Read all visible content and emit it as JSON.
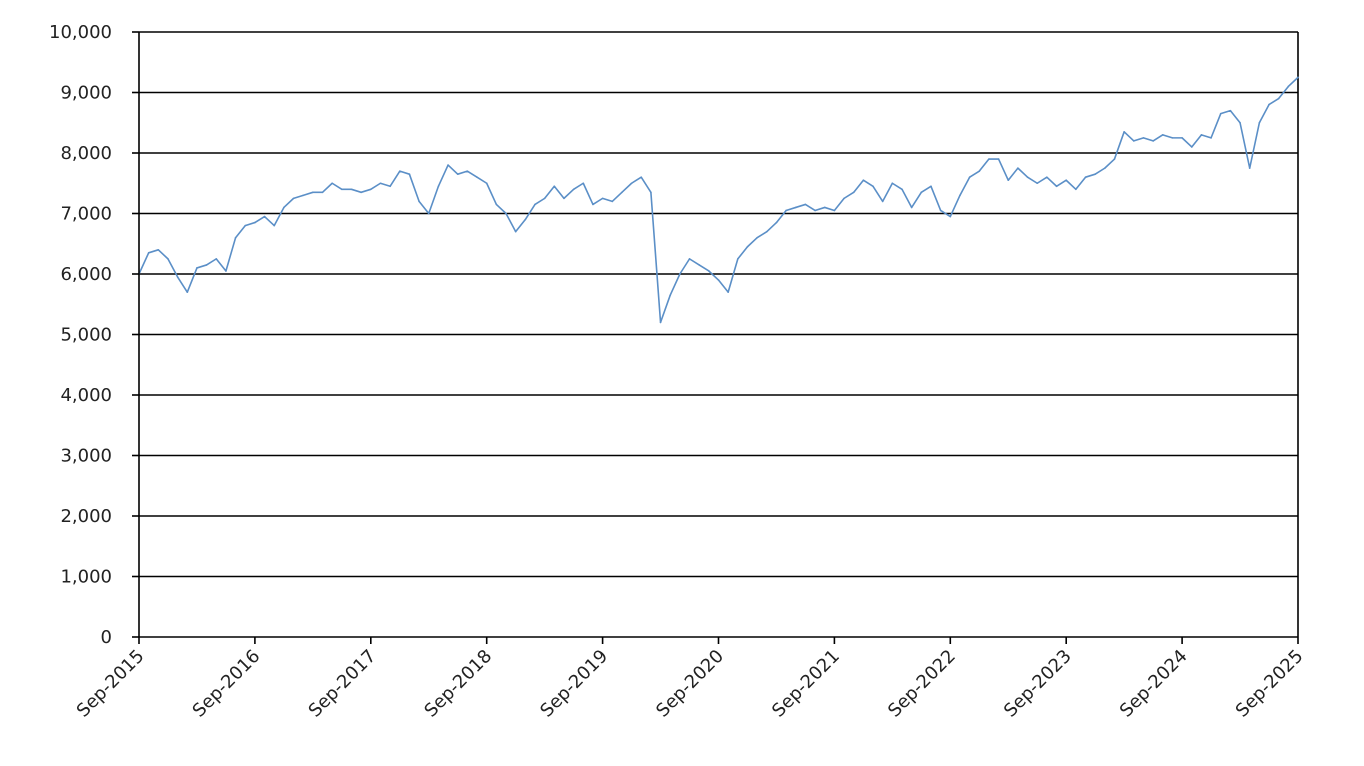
{
  "chart_data": {
    "type": "line",
    "title": "",
    "xlabel": "",
    "ylabel": "",
    "ylim": [
      0,
      10000
    ],
    "yticks": [
      "0",
      "1,000",
      "2,000",
      "3,000",
      "4,000",
      "5,000",
      "6,000",
      "7,000",
      "8,000",
      "9,000",
      "10,000"
    ],
    "xticks": [
      "Sep-2015",
      "Sep-2016",
      "Sep-2017",
      "Sep-2018",
      "Sep-2019",
      "Sep-2020",
      "Sep-2021",
      "Sep-2022",
      "Sep-2023",
      "Sep-2024",
      "Sep-2025"
    ],
    "xlim": [
      "2015-09",
      "2025-09"
    ],
    "grid": true,
    "legend": "none",
    "series": [
      {
        "color": "#5b8fc7",
        "points": [
          [
            "2015-09",
            6000
          ],
          [
            "2015-10",
            6350
          ],
          [
            "2015-11",
            6400
          ],
          [
            "2015-12",
            6250
          ],
          [
            "2016-01",
            5950
          ],
          [
            "2016-02",
            5700
          ],
          [
            "2016-03",
            6100
          ],
          [
            "2016-04",
            6150
          ],
          [
            "2016-05",
            6250
          ],
          [
            "2016-06",
            6050
          ],
          [
            "2016-07",
            6600
          ],
          [
            "2016-08",
            6800
          ],
          [
            "2016-09",
            6850
          ],
          [
            "2016-10",
            6950
          ],
          [
            "2016-11",
            6800
          ],
          [
            "2016-12",
            7100
          ],
          [
            "2017-01",
            7250
          ],
          [
            "2017-02",
            7300
          ],
          [
            "2017-03",
            7350
          ],
          [
            "2017-04",
            7350
          ],
          [
            "2017-05",
            7500
          ],
          [
            "2017-06",
            7400
          ],
          [
            "2017-07",
            7400
          ],
          [
            "2017-08",
            7350
          ],
          [
            "2017-09",
            7400
          ],
          [
            "2017-10",
            7500
          ],
          [
            "2017-11",
            7450
          ],
          [
            "2017-12",
            7700
          ],
          [
            "2018-01",
            7650
          ],
          [
            "2018-02",
            7200
          ],
          [
            "2018-03",
            7000
          ],
          [
            "2018-04",
            7450
          ],
          [
            "2018-05",
            7800
          ],
          [
            "2018-06",
            7650
          ],
          [
            "2018-07",
            7700
          ],
          [
            "2018-08",
            7600
          ],
          [
            "2018-09",
            7500
          ],
          [
            "2018-10",
            7150
          ],
          [
            "2018-11",
            7000
          ],
          [
            "2018-12",
            6700
          ],
          [
            "2019-01",
            6900
          ],
          [
            "2019-02",
            7150
          ],
          [
            "2019-03",
            7250
          ],
          [
            "2019-04",
            7450
          ],
          [
            "2019-05",
            7250
          ],
          [
            "2019-06",
            7400
          ],
          [
            "2019-07",
            7500
          ],
          [
            "2019-08",
            7150
          ],
          [
            "2019-09",
            7250
          ],
          [
            "2019-10",
            7200
          ],
          [
            "2019-11",
            7350
          ],
          [
            "2019-12",
            7500
          ],
          [
            "2020-01",
            7600
          ],
          [
            "2020-02",
            7350
          ],
          [
            "2020-03",
            5200
          ],
          [
            "2020-04",
            5650
          ],
          [
            "2020-05",
            6000
          ],
          [
            "2020-06",
            6250
          ],
          [
            "2020-07",
            6150
          ],
          [
            "2020-08",
            6050
          ],
          [
            "2020-09",
            5900
          ],
          [
            "2020-10",
            5700
          ],
          [
            "2020-11",
            6250
          ],
          [
            "2020-12",
            6450
          ],
          [
            "2021-01",
            6600
          ],
          [
            "2021-02",
            6700
          ],
          [
            "2021-03",
            6850
          ],
          [
            "2021-04",
            7050
          ],
          [
            "2021-05",
            7100
          ],
          [
            "2021-06",
            7150
          ],
          [
            "2021-07",
            7050
          ],
          [
            "2021-08",
            7100
          ],
          [
            "2021-09",
            7050
          ],
          [
            "2021-10",
            7250
          ],
          [
            "2021-11",
            7350
          ],
          [
            "2021-12",
            7550
          ],
          [
            "2022-01",
            7450
          ],
          [
            "2022-02",
            7200
          ],
          [
            "2022-03",
            7500
          ],
          [
            "2022-04",
            7400
          ],
          [
            "2022-05",
            7100
          ],
          [
            "2022-06",
            7350
          ],
          [
            "2022-07",
            7450
          ],
          [
            "2022-08",
            7050
          ],
          [
            "2022-09",
            6950
          ],
          [
            "2022-10",
            7300
          ],
          [
            "2022-11",
            7600
          ],
          [
            "2022-12",
            7700
          ],
          [
            "2023-01",
            7900
          ],
          [
            "2023-02",
            7900
          ],
          [
            "2023-03",
            7550
          ],
          [
            "2023-04",
            7750
          ],
          [
            "2023-05",
            7600
          ],
          [
            "2023-06",
            7500
          ],
          [
            "2023-07",
            7600
          ],
          [
            "2023-08",
            7450
          ],
          [
            "2023-09",
            7550
          ],
          [
            "2023-10",
            7400
          ],
          [
            "2023-11",
            7600
          ],
          [
            "2023-12",
            7650
          ],
          [
            "2024-01",
            7750
          ],
          [
            "2024-02",
            7900
          ],
          [
            "2024-03",
            8350
          ],
          [
            "2024-04",
            8200
          ],
          [
            "2024-05",
            8250
          ],
          [
            "2024-06",
            8200
          ],
          [
            "2024-07",
            8300
          ],
          [
            "2024-08",
            8250
          ],
          [
            "2024-09",
            8250
          ],
          [
            "2024-10",
            8100
          ],
          [
            "2024-11",
            8300
          ],
          [
            "2024-12",
            8250
          ],
          [
            "2025-01",
            8650
          ],
          [
            "2025-02",
            8700
          ],
          [
            "2025-03",
            8500
          ],
          [
            "2025-04",
            7750
          ],
          [
            "2025-05",
            8500
          ],
          [
            "2025-06",
            8800
          ],
          [
            "2025-07",
            8900
          ],
          [
            "2025-08",
            9100
          ],
          [
            "2025-09",
            9250
          ]
        ]
      }
    ]
  }
}
